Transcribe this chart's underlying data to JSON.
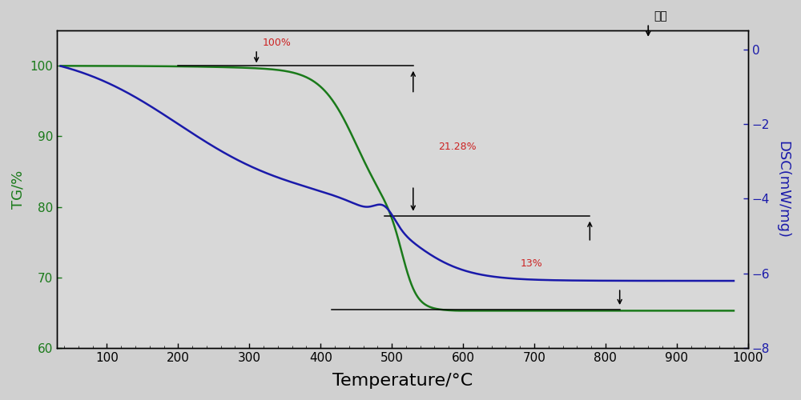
{
  "background_color": "#d0d0d0",
  "plot_bg_color": "#d8d8d8",
  "xlabel": "Temperature/°C",
  "ylabel_left": "TG/%",
  "ylabel_right": "DSC(mW/mg)",
  "xlim": [
    30,
    1000
  ],
  "ylim_left": [
    60,
    105
  ],
  "ylim_right": [
    -8,
    0.5
  ],
  "xticks": [
    100,
    200,
    300,
    400,
    500,
    600,
    700,
    800,
    900,
    1000
  ],
  "yticks_left": [
    60,
    70,
    80,
    90,
    100
  ],
  "yticks_right": [
    -8,
    -6,
    -4,
    -2,
    0
  ],
  "tg_color": "#1a7a1a",
  "dsc_color": "#1a1aaa",
  "ann_red": "#cc2222",
  "ann_black": "#111111",
  "ann_fontsize": 9,
  "label_fontsize": 13,
  "xlabel_fontsize": 16,
  "tick_fontsize": 11,
  "note_fare": "放热",
  "note_100": "100%",
  "note_2128": "21.28%",
  "note_13": "13%",
  "figsize": [
    10,
    5
  ],
  "dpi": 100
}
